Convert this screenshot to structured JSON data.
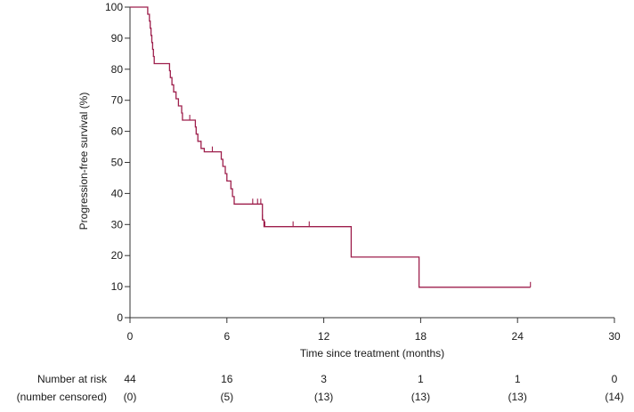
{
  "chart_data": {
    "type": "line",
    "title": "",
    "xlabel": "Time since treatment (months)",
    "ylabel": "Progression-free survival (%)",
    "xlim": [
      0,
      30
    ],
    "ylim": [
      0,
      100
    ],
    "x_ticks": [
      0,
      6,
      12,
      18,
      24,
      30
    ],
    "y_ticks": [
      0,
      10,
      20,
      30,
      40,
      50,
      60,
      70,
      80,
      90,
      100
    ],
    "grid": false,
    "series": [
      {
        "name": "Progression-free survival",
        "color": "#9e1f4c",
        "step": "post",
        "points": [
          [
            0,
            100
          ],
          [
            1.1,
            100
          ],
          [
            1.1,
            97.7
          ],
          [
            1.2,
            95.5
          ],
          [
            1.25,
            93.2
          ],
          [
            1.3,
            90.9
          ],
          [
            1.35,
            88.6
          ],
          [
            1.4,
            86.4
          ],
          [
            1.45,
            84.1
          ],
          [
            1.5,
            81.8
          ],
          [
            2.4,
            81.8
          ],
          [
            2.45,
            79.5
          ],
          [
            2.5,
            77.3
          ],
          [
            2.6,
            75.0
          ],
          [
            2.7,
            72.7
          ],
          [
            2.85,
            70.5
          ],
          [
            3.0,
            68.2
          ],
          [
            3.2,
            65.9
          ],
          [
            3.25,
            63.6
          ],
          [
            4.0,
            63.6
          ],
          [
            4.05,
            61.4
          ],
          [
            4.1,
            59.1
          ],
          [
            4.2,
            56.8
          ],
          [
            4.4,
            54.5
          ],
          [
            4.6,
            53.4
          ],
          [
            5.6,
            53.4
          ],
          [
            5.65,
            51.0
          ],
          [
            5.75,
            48.7
          ],
          [
            5.9,
            46.4
          ],
          [
            6.0,
            44.0
          ],
          [
            6.2,
            44.0
          ],
          [
            6.25,
            41.5
          ],
          [
            6.35,
            39.0
          ],
          [
            6.45,
            36.6
          ],
          [
            8.1,
            36.6
          ],
          [
            8.2,
            31.5
          ],
          [
            8.3,
            29.3
          ],
          [
            13.7,
            29.3
          ],
          [
            13.7,
            19.5
          ],
          [
            17.9,
            19.5
          ],
          [
            17.9,
            9.8
          ],
          [
            24.8,
            9.8
          ]
        ],
        "censored_x": [
          3.7,
          5.1,
          7.6,
          7.9,
          8.1,
          8.2,
          8.3,
          8.35,
          10.1,
          11.1,
          24.8
        ]
      }
    ],
    "risk_table": {
      "row_label": "Number at risk",
      "censored_label": "(number censored)",
      "times": [
        0,
        6,
        12,
        18,
        24,
        30
      ],
      "at_risk": [
        "44",
        "16",
        "3",
        "1",
        "1",
        "0"
      ],
      "censored": [
        "(0)",
        "(5)",
        "(13)",
        "(13)",
        "(13)",
        "(14)"
      ]
    }
  }
}
